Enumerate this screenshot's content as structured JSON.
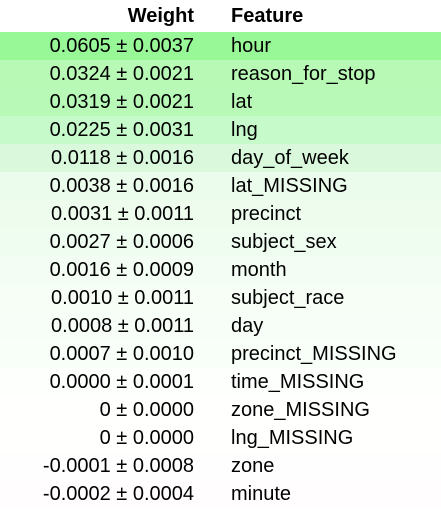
{
  "table": {
    "headers": {
      "weight": "Weight",
      "feature": "Feature"
    },
    "rows": [
      {
        "weight": "0.0605 ± 0.0037",
        "feature": "hour",
        "color": "#98f797"
      },
      {
        "weight": "0.0324 ± 0.0021",
        "feature": "reason_for_stop",
        "color": "#b7f9b5"
      },
      {
        "weight": "0.0319 ± 0.0021",
        "feature": "lat",
        "color": "#b9f9b7"
      },
      {
        "weight": "0.0225 ± 0.0031",
        "feature": "lng",
        "color": "#c7facb"
      },
      {
        "weight": "0.0118 ± 0.0016",
        "feature": "day_of_week",
        "color": "#daf9dc"
      },
      {
        "weight": "0.0038 ± 0.0016",
        "feature": "lat_MISSING",
        "color": "#ebfcec"
      },
      {
        "weight": "0.0031 ± 0.0011",
        "feature": "precinct",
        "color": "#eefcee"
      },
      {
        "weight": "0.0027 ± 0.0006",
        "feature": "subject_sex",
        "color": "#effdf0"
      },
      {
        "weight": "0.0016 ± 0.0009",
        "feature": "month",
        "color": "#f3fdf3"
      },
      {
        "weight": "0.0010 ± 0.0011",
        "feature": "subject_race",
        "color": "#f6fef6"
      },
      {
        "weight": "0.0008 ± 0.0011",
        "feature": "day",
        "color": "#f7fef7"
      },
      {
        "weight": "0.0007 ± 0.0010",
        "feature": "precinct_MISSING",
        "color": "#f8fef8"
      },
      {
        "weight": "0.0000 ± 0.0001",
        "feature": "time_MISSING",
        "color": "#fdfffd"
      },
      {
        "weight": "0 ± 0.0000",
        "feature": "zone_MISSING",
        "color": "#fffffe"
      },
      {
        "weight": "0 ± 0.0000",
        "feature": "lng_MISSING",
        "color": "#fffffe"
      },
      {
        "weight": "-0.0001 ± 0.0008",
        "feature": "zone",
        "color": "#fffefe"
      },
      {
        "weight": "-0.0002 ± 0.0004",
        "feature": "minute",
        "color": "#fffdfd"
      }
    ]
  }
}
